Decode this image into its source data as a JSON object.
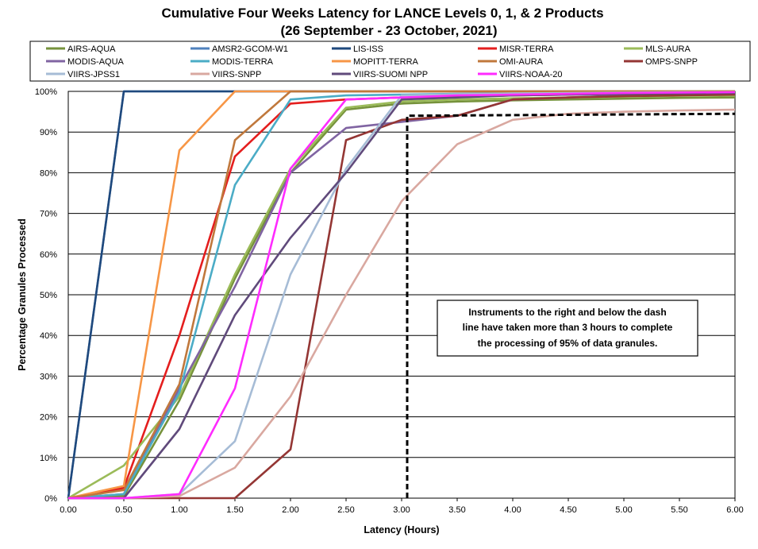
{
  "chart_data": {
    "type": "line",
    "title_line1": "Cumulative Four Weeks Latency  for LANCE Levels 0, 1, & 2 Products",
    "title_line2": "(26  September   -  23  October,  2021)",
    "xlabel": "Latency (Hours)",
    "ylabel": "Percentage Granules Processed",
    "xlim": [
      0,
      6
    ],
    "ylim": [
      0,
      100
    ],
    "x_ticks": [
      "0.00",
      "0.50",
      "1.00",
      "1.50",
      "2.00",
      "2.50",
      "3.00",
      "3.50",
      "4.00",
      "4.50",
      "5.00",
      "5.50",
      "6.00"
    ],
    "y_ticks": [
      "0%",
      "10%",
      "20%",
      "30%",
      "40%",
      "50%",
      "60%",
      "70%",
      "80%",
      "90%",
      "100%"
    ],
    "grid": "horizontal",
    "legend_position": "top",
    "x": [
      0,
      0.5,
      1,
      1.5,
      2,
      2.5,
      3,
      3.5,
      4,
      4.5,
      5,
      5.5,
      6
    ],
    "series": [
      {
        "name": "AIRS-AQUA",
        "color": "#76923c",
        "values": [
          0,
          0.5,
          24,
          54,
          80,
          95.5,
          97,
          97.5,
          97.8,
          98,
          98.2,
          98.4,
          98.5
        ]
      },
      {
        "name": "AMSR2-GCOM-W1",
        "color": "#4f81bd",
        "values": [
          0,
          100,
          100,
          100,
          100,
          100,
          100,
          100,
          100,
          100,
          100,
          100,
          100
        ]
      },
      {
        "name": "LIS-ISS",
        "color": "#1f497d",
        "values": [
          0,
          100,
          100,
          100,
          100,
          100,
          100,
          100,
          100,
          100,
          100,
          100,
          100
        ]
      },
      {
        "name": "MISR-TERRA",
        "color": "#e41e1e",
        "values": [
          0,
          2.5,
          40,
          84,
          97,
          98,
          98.5,
          98.7,
          99,
          99.2,
          99.4,
          99.6,
          99.7
        ]
      },
      {
        "name": "MLS-AURA",
        "color": "#9bbb59",
        "values": [
          0,
          8,
          25,
          55,
          81,
          96,
          97.5,
          98,
          98.3,
          98.5,
          98.7,
          98.9,
          99
        ]
      },
      {
        "name": "MODIS-AQUA",
        "color": "#8064a2",
        "values": [
          0,
          1,
          27,
          52,
          80,
          91,
          92.5,
          94,
          98,
          98.5,
          99,
          99.2,
          99.3
        ]
      },
      {
        "name": "MODIS-TERRA",
        "color": "#4bacc6",
        "values": [
          0,
          1,
          26,
          77,
          98,
          99,
          99.2,
          99.4,
          99.5,
          99.6,
          99.7,
          99.8,
          99.8
        ]
      },
      {
        "name": "MOPITT-TERRA",
        "color": "#f79646",
        "values": [
          0,
          3,
          85.5,
          100,
          100,
          100,
          100,
          100,
          100,
          100,
          100,
          100,
          100
        ]
      },
      {
        "name": "OMI-AURA",
        "color": "#c0783c",
        "values": [
          0,
          2,
          28,
          88,
          100,
          100,
          100,
          100,
          100,
          100,
          100,
          100,
          100
        ]
      },
      {
        "name": "OMPS-SNPP",
        "color": "#943634",
        "values": [
          0,
          0,
          0,
          0,
          12,
          88,
          93,
          94,
          98,
          98.5,
          98.8,
          99,
          99.2
        ]
      },
      {
        "name": "VIIRS-JPSS1",
        "color": "#a6bcd6",
        "values": [
          0,
          0,
          1,
          14,
          55,
          81,
          99,
          99.3,
          99.5,
          99.6,
          99.7,
          99.8,
          99.8
        ]
      },
      {
        "name": "VIIRS-SNPP",
        "color": "#d9a8a0",
        "values": [
          0,
          0,
          0.5,
          7.5,
          25,
          50,
          73,
          87,
          93,
          94.5,
          95,
          95.3,
          95.5
        ]
      },
      {
        "name": "VIIRS-SUOMI NPP",
        "color": "#604a7b",
        "values": [
          0,
          0,
          17,
          45,
          64,
          80,
          98,
          98.5,
          99,
          99.2,
          99.4,
          99.5,
          99.6
        ]
      },
      {
        "name": "VIIRS-NOAA-20",
        "color": "#ff2bff",
        "values": [
          0,
          0,
          1,
          27,
          81,
          98,
          98.5,
          99,
          99.2,
          99.4,
          99.6,
          99.7,
          99.8
        ]
      }
    ],
    "threshold_line": {
      "x": [
        3.05,
        3.05,
        6.0
      ],
      "y": [
        0,
        94,
        94.5
      ],
      "color": "#000000",
      "style": "dashed"
    },
    "annotation": [
      "Instruments to the right and below the dash",
      "line have taken more than 3 hours to complete",
      "the processing of 95% of data granules."
    ]
  }
}
